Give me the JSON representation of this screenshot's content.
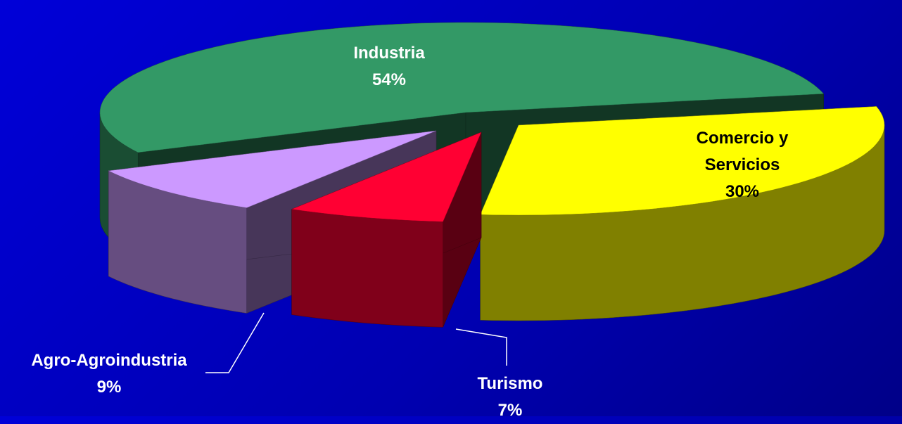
{
  "chart_data": {
    "type": "pie3d",
    "categories": [
      "Comercio y Servicios",
      "Turismo",
      "Agro-Agroindustria",
      "Industria"
    ],
    "values": [
      30,
      7,
      9,
      54
    ],
    "value_labels": [
      "30%",
      "7%",
      "9%",
      "54%"
    ],
    "colors": [
      "#ffff00",
      "#ff0033",
      "#cc99ff",
      "#339966"
    ]
  }
}
